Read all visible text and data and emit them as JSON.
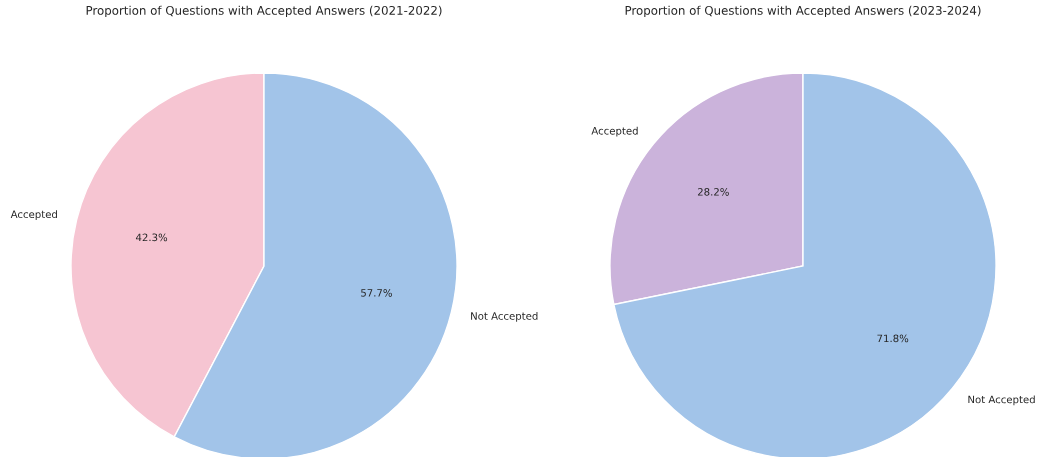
{
  "chart_data": [
    {
      "type": "pie",
      "title": "Proportion of Questions with Accepted Answers (2021-2022)",
      "categories": [
        "Accepted",
        "Not Accepted"
      ],
      "values": [
        42.3,
        57.7
      ],
      "value_labels": [
        "42.3%",
        "57.7%"
      ],
      "colors": [
        "#f6c5d2",
        "#a2c4e9"
      ]
    },
    {
      "type": "pie",
      "title": "Proportion of Questions with Accepted Answers (2023-2024)",
      "categories": [
        "Accepted",
        "Not Accepted"
      ],
      "values": [
        28.2,
        71.8
      ],
      "value_labels": [
        "28.2%",
        "71.8%"
      ],
      "colors": [
        "#cbb3db",
        "#a2c4e9"
      ]
    }
  ]
}
